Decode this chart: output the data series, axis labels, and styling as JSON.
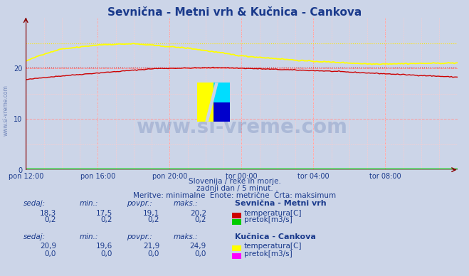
{
  "title": "Sevnična - Metni vrh & Kučnica - Cankova",
  "title_color": "#1a3a8c",
  "bg_color": "#ccd5e8",
  "plot_bg_color": "#ccd5e8",
  "x_tick_labels": [
    "pon 12:00",
    "pon 16:00",
    "pon 20:00",
    "tor 00:00",
    "tor 04:00",
    "tor 08:00"
  ],
  "n_points": 289,
  "y_ticks": [
    0,
    10,
    20
  ],
  "ylim": [
    0,
    30
  ],
  "xlim": [
    0,
    288
  ],
  "sevnicna_max_line": 20.2,
  "kucnica_max_line": 24.9,
  "line_color_sevnicna_temp": "#cc0000",
  "line_color_kucnica_temp": "#ffff00",
  "line_color_sevnicna_flow": "#00cc00",
  "line_color_kucnica_flow": "#ff00ff",
  "sevnicna_flow_val": 0.2,
  "kucnica_flow_val": 0.0,
  "watermark_text": "www.si-vreme.com",
  "watermark_color": "#1a3a8c",
  "watermark_alpha": 0.18,
  "subtitle1": "Slovenija / reke in morje.",
  "subtitle2": "zadnji dan / 5 minut.",
  "subtitle3": "Meritve: minimalne  Enote: metrične  Črta: maksimum",
  "subtitle_color": "#1a3a8c",
  "tc": "#1a3a8c",
  "sidebar_text": "www.si-vreme.com",
  "sev_vals": [
    "18,3",
    "17,5",
    "19,1",
    "20,2"
  ],
  "sev_flow_vals": [
    "0,2",
    "0,2",
    "0,2",
    "0,2"
  ],
  "kuc_vals": [
    "20,9",
    "19,6",
    "21,9",
    "24,9"
  ],
  "kuc_flow_vals": [
    "0,0",
    "0,0",
    "0,0",
    "0,0"
  ],
  "col_headers": [
    "sedaj:",
    "min.:",
    "povpr.:",
    "maks.:"
  ]
}
